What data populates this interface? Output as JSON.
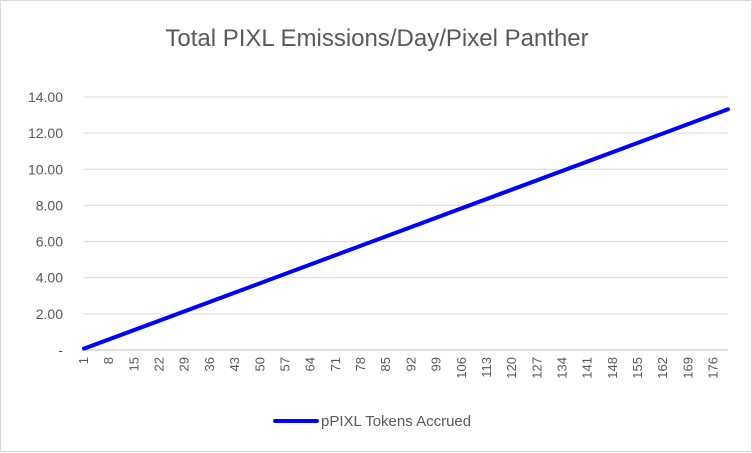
{
  "chart_data": {
    "type": "line",
    "title": "Total PIXL Emissions/Day/Pixel Panther",
    "xlabel": "",
    "ylabel": "",
    "x_range": [
      1,
      180
    ],
    "x_tick_labels": [
      "1",
      "8",
      "15",
      "22",
      "29",
      "36",
      "43",
      "50",
      "57",
      "64",
      "71",
      "78",
      "85",
      "92",
      "99",
      "106",
      "113",
      "120",
      "127",
      "134",
      "141",
      "148",
      "155",
      "162",
      "169",
      "176"
    ],
    "ylim": [
      0,
      14
    ],
    "y_tick_values": [
      0,
      2,
      4,
      6,
      8,
      10,
      12,
      14
    ],
    "y_tick_labels": [
      "-",
      "2.00",
      "4.00",
      "6.00",
      "8.00",
      "10.00",
      "12.00",
      "14.00"
    ],
    "grid": "horizontal",
    "legend_position": "bottom",
    "series": [
      {
        "name": "pPIXL Tokens Accrued",
        "color": "#0000ff",
        "x": [
          1,
          180
        ],
        "values": [
          0.074,
          13.32
        ]
      }
    ]
  }
}
